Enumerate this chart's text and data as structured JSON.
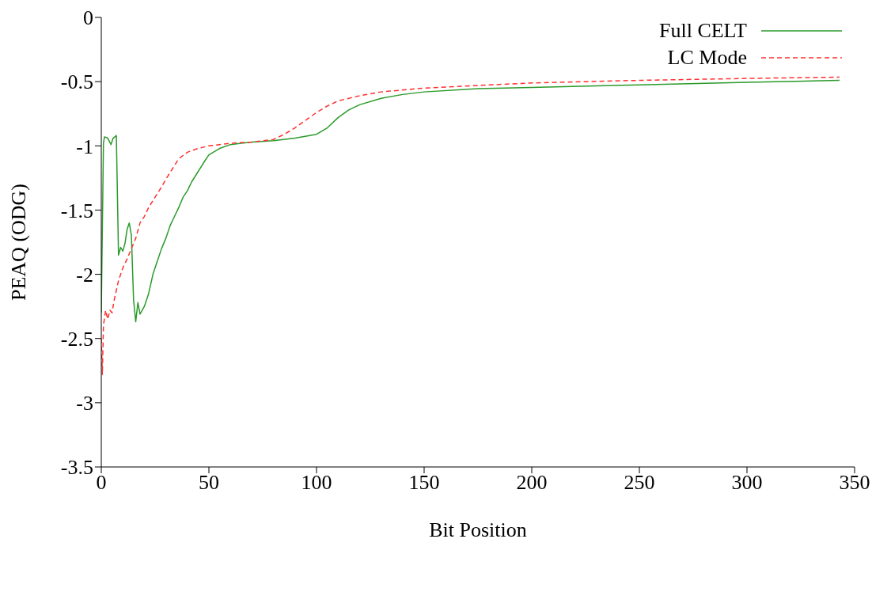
{
  "chart_data": {
    "type": "line",
    "xlabel": "Bit Position",
    "ylabel": "PEAQ (ODG)",
    "xlim": [
      0,
      350
    ],
    "xticks": [
      0,
      50,
      100,
      150,
      200,
      250,
      300,
      350
    ],
    "ylim": [
      -3.5,
      0
    ],
    "yticks": [
      -3.5,
      -3,
      -2.5,
      -2,
      -1.5,
      -1,
      -0.5,
      0
    ],
    "grid": false,
    "legend": "top right",
    "marker": "none",
    "series": [
      {
        "name": "Full CELT",
        "color": "#2a9a2a",
        "line_style": "solid",
        "x": [
          0,
          1,
          1.5,
          3,
          4.5,
          5.5,
          7,
          8,
          9,
          10,
          11,
          12,
          13,
          14,
          15,
          16,
          17,
          18,
          20,
          22,
          24,
          26,
          28,
          30,
          32,
          34,
          36,
          38,
          40,
          42,
          45,
          48,
          50,
          55,
          60,
          65,
          70,
          80,
          90,
          100,
          105,
          110,
          115,
          120,
          130,
          140,
          150,
          175,
          200,
          250,
          300,
          343
        ],
        "values": [
          -2.3,
          -0.98,
          -0.93,
          -0.94,
          -0.99,
          -0.94,
          -0.92,
          -1.85,
          -1.79,
          -1.82,
          -1.76,
          -1.65,
          -1.6,
          -1.7,
          -2.2,
          -2.37,
          -2.22,
          -2.31,
          -2.25,
          -2.15,
          -2.0,
          -1.9,
          -1.8,
          -1.72,
          -1.62,
          -1.55,
          -1.48,
          -1.4,
          -1.35,
          -1.28,
          -1.2,
          -1.12,
          -1.07,
          -1.02,
          -0.99,
          -0.98,
          -0.97,
          -0.96,
          -0.94,
          -0.91,
          -0.86,
          -0.78,
          -0.72,
          -0.68,
          -0.63,
          -0.6,
          -0.58,
          -0.555,
          -0.545,
          -0.525,
          -0.505,
          -0.49
        ]
      },
      {
        "name": "LC Mode",
        "color": "#ff3030",
        "line_style": "dashed",
        "x": [
          0,
          0.5,
          1,
          2,
          3,
          4,
          5,
          6,
          8,
          10,
          12,
          14,
          16,
          18,
          20,
          22,
          25,
          28,
          30,
          33,
          36,
          40,
          45,
          50,
          55,
          60,
          70,
          80,
          85,
          90,
          95,
          100,
          105,
          110,
          120,
          130,
          150,
          175,
          200,
          250,
          300,
          343
        ],
        "values": [
          -2.5,
          -2.78,
          -2.4,
          -2.28,
          -2.35,
          -2.28,
          -2.3,
          -2.2,
          -2.05,
          -1.95,
          -1.88,
          -1.8,
          -1.72,
          -1.6,
          -1.55,
          -1.48,
          -1.4,
          -1.32,
          -1.26,
          -1.18,
          -1.1,
          -1.05,
          -1.02,
          -1.0,
          -0.99,
          -0.98,
          -0.97,
          -0.95,
          -0.91,
          -0.86,
          -0.8,
          -0.74,
          -0.69,
          -0.65,
          -0.61,
          -0.58,
          -0.55,
          -0.53,
          -0.51,
          -0.49,
          -0.475,
          -0.465
        ]
      }
    ]
  }
}
